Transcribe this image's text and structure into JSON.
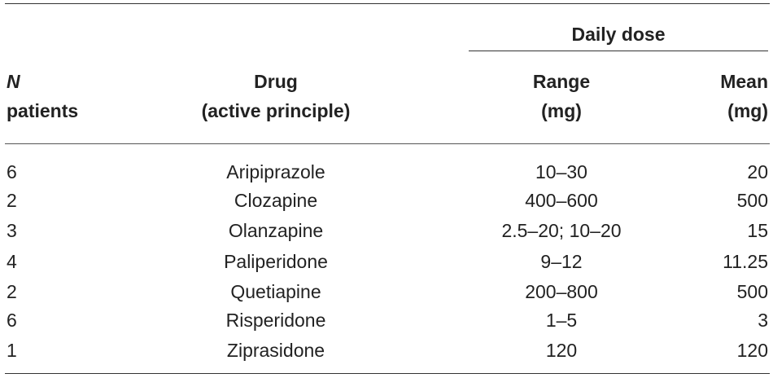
{
  "table": {
    "group_header": "Daily dose",
    "headers": {
      "n": {
        "line1": "N",
        "line2": "patients"
      },
      "drug": {
        "line1": "Drug",
        "line2": "(active principle)"
      },
      "range": {
        "line1": "Range",
        "line2": "(mg)"
      },
      "mean": {
        "line1": "Mean",
        "line2": "(mg)"
      }
    },
    "rows": [
      {
        "n": "6",
        "drug": "Aripiprazole",
        "range": "10–30",
        "mean": "20"
      },
      {
        "n": "2",
        "drug": "Clozapine",
        "range": "400–600",
        "mean": "500"
      },
      {
        "n": "3",
        "drug": "Olanzapine",
        "range": "2.5–20; 10–20",
        "mean": "15"
      },
      {
        "n": "4",
        "drug": "Paliperidone",
        "range": "9–12",
        "mean": "11.25"
      },
      {
        "n": "2",
        "drug": "Quetiapine",
        "range": "200–800",
        "mean": "500"
      },
      {
        "n": "6",
        "drug": "Risperidone",
        "range": "1–5",
        "mean": "3"
      },
      {
        "n": "1",
        "drug": "Ziprasidone",
        "range": "120",
        "mean": "120"
      }
    ]
  }
}
